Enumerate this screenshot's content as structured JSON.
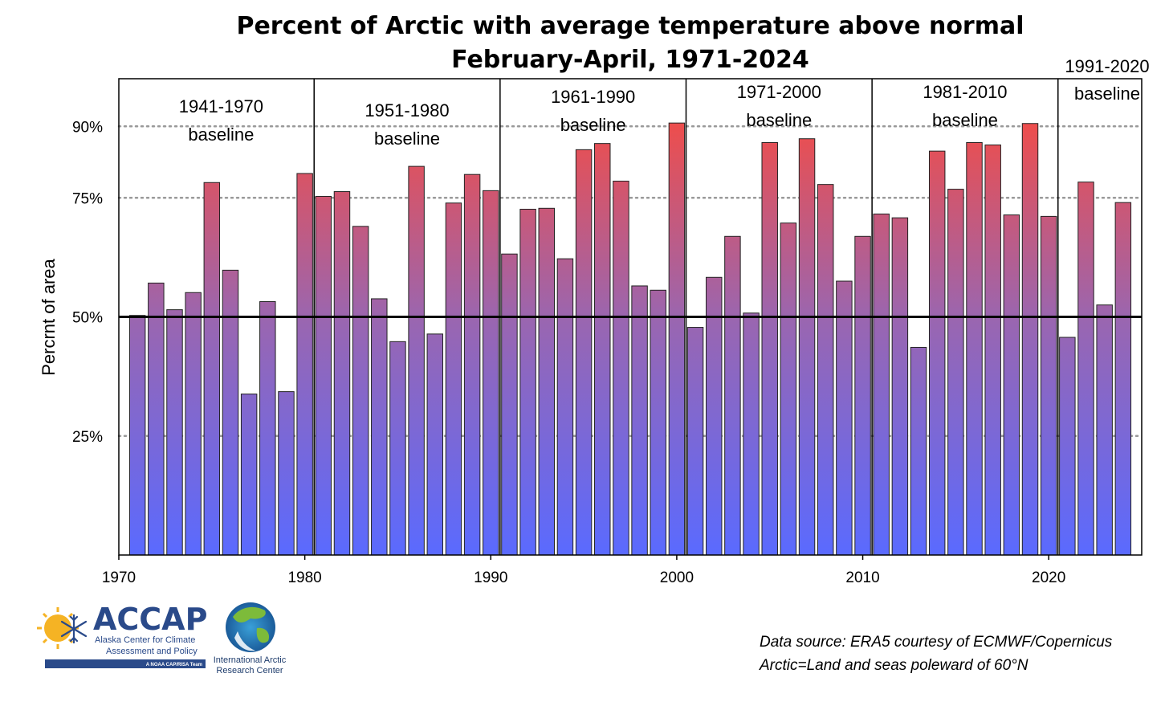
{
  "chart_data": {
    "type": "bar",
    "title": "Percent of Arctic with average temperature above normal",
    "subtitle": "February-April, 1971-2024",
    "ylabel": "Percrnt of area",
    "xlabel": "",
    "xlim": [
      1970,
      2025
    ],
    "ylim": [
      0,
      100
    ],
    "x_ticks": [
      {
        "value": 1970,
        "label": "1970"
      },
      {
        "value": 1980,
        "label": "1980"
      },
      {
        "value": 1990,
        "label": "1990"
      },
      {
        "value": 2000,
        "label": "2000"
      },
      {
        "value": 2010,
        "label": "2010"
      },
      {
        "value": 2020,
        "label": "2020"
      }
    ],
    "y_ticks": [
      {
        "value": 25,
        "label": "25%"
      },
      {
        "value": 50,
        "label": "50%"
      },
      {
        "value": 75,
        "label": "75%"
      },
      {
        "value": 90,
        "label": "90%"
      }
    ],
    "reference_line": 50,
    "x": [
      1971,
      1972,
      1973,
      1974,
      1975,
      1976,
      1977,
      1978,
      1979,
      1980,
      1981,
      1982,
      1983,
      1984,
      1985,
      1986,
      1987,
      1988,
      1989,
      1990,
      1991,
      1992,
      1993,
      1994,
      1995,
      1996,
      1997,
      1998,
      1999,
      2000,
      2001,
      2002,
      2003,
      2004,
      2005,
      2006,
      2007,
      2008,
      2009,
      2010,
      2011,
      2012,
      2013,
      2014,
      2015,
      2016,
      2017,
      2018,
      2019,
      2020,
      2021,
      2022,
      2023,
      2024
    ],
    "values": [
      50.3,
      57.1,
      51.5,
      55.1,
      78.2,
      59.8,
      33.8,
      53.2,
      34.3,
      80.1,
      75.3,
      76.3,
      69.0,
      53.8,
      44.8,
      81.6,
      46.4,
      73.9,
      79.9,
      76.5,
      63.2,
      72.6,
      72.8,
      62.2,
      85.1,
      86.4,
      78.5,
      56.5,
      55.6,
      90.7,
      47.8,
      58.3,
      66.9,
      50.8,
      86.6,
      69.7,
      87.4,
      77.8,
      57.5,
      66.9,
      71.6,
      70.8,
      43.6,
      84.8,
      76.8,
      86.6,
      86.1,
      71.4,
      90.6,
      71.1,
      45.7,
      78.3,
      52.5,
      74.0
    ],
    "baselines": [
      {
        "label1": "1941-1970",
        "label2": "baseline",
        "from": 1970.5,
        "to": 1980.5
      },
      {
        "label1": "1951-1980",
        "label2": "baseline",
        "from": 1980.5,
        "to": 1990.5
      },
      {
        "label1": "1961-1990",
        "label2": "baseline",
        "from": 1990.5,
        "to": 2000.5
      },
      {
        "label1": "1971-2000",
        "label2": "baseline",
        "from": 2000.5,
        "to": 2010.5
      },
      {
        "label1": "1981-2010",
        "label2": "baseline",
        "from": 2010.5,
        "to": 2020.5
      },
      {
        "label1": "1991-2020",
        "label2": "baseline",
        "from": 2020.5,
        "to": 2025
      }
    ],
    "grid": "dotted horizontal at 25%, 75%, 90%",
    "colors": {
      "bar_low": "#5a6aff",
      "bar_mid": "#9a66b0",
      "bar_high": "#ec4e4e",
      "bar_stroke": "#222222",
      "grid": "#999999"
    }
  },
  "footer": {
    "source_line1": "Data source: ERA5 courtesy of ECMWF/Copernicus",
    "source_line2": "Arctic=Land and seas poleward of 60°N"
  },
  "logos": {
    "accap_name": "ACCAP",
    "accap_line1": "Alaska Center for Climate",
    "accap_line2": "Assessment and Policy",
    "accap_tag": "A NOAA CAP/RISA Team",
    "iarc_line1": "International Arctic",
    "iarc_line2": "Research Center"
  }
}
